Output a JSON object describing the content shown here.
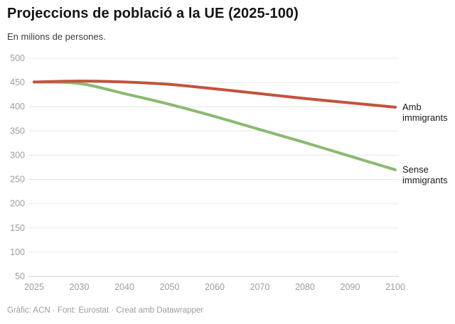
{
  "header": {
    "title": "Projeccions de població a la UE (2025-100)",
    "subtitle": "En milions de persones."
  },
  "footer": {
    "credit": "Gràfic: ACN · Font: Eurostat · Creat amb Datawrapper"
  },
  "chart_data": {
    "type": "line",
    "x": [
      2025,
      2030,
      2040,
      2050,
      2060,
      2070,
      2080,
      2090,
      2100
    ],
    "x_spacing": "categorical-even",
    "series": [
      {
        "name": "Amb immigrants",
        "color": "#c4523e",
        "values": [
          451,
          453,
          451,
          446,
          437,
          427,
          417,
          408,
          399
        ]
      },
      {
        "name": "Sense immigrants",
        "color": "#8aba70",
        "values": [
          451,
          448,
          427,
          405,
          380,
          353,
          326,
          298,
          270
        ]
      }
    ],
    "title": "Projeccions de població a la UE (2025-100)",
    "subtitle": "En milions de persones.",
    "xlabel": "",
    "ylabel": "",
    "ylim": [
      50,
      500
    ],
    "ytick_step": 50,
    "grid": true,
    "legend_position": "labels-at-line-ends",
    "style": {
      "grid_color": "#e7e7e7",
      "baseline_color": "#cfcfcf",
      "tick_label_color": "#9e9e9e",
      "line_width": 4
    }
  }
}
